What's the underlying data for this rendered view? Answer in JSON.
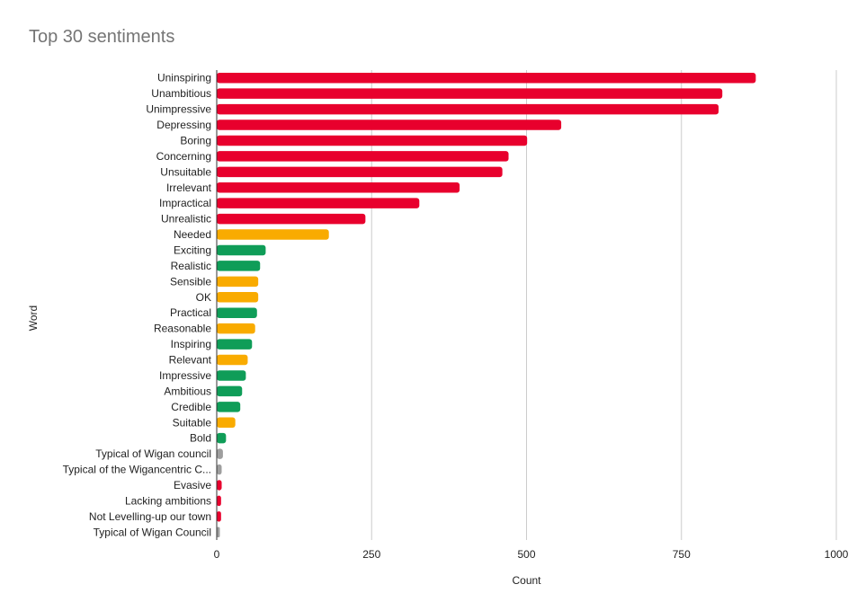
{
  "chart_data": {
    "type": "bar",
    "orientation": "horizontal",
    "title": "Top 30 sentiments",
    "xlabel": "Count",
    "ylabel": "Word",
    "xlim": [
      0,
      1000
    ],
    "xticks": [
      0,
      250,
      500,
      750,
      1000
    ],
    "grid": true,
    "legend": "none",
    "colors": {
      "negative": "#e8002d",
      "neutral": "#f9ab00",
      "positive": "#0f9d58",
      "other": "#9e9e9e"
    },
    "categories": [
      "Uninspiring",
      "Unambitious",
      "Unimpressive",
      "Depressing",
      "Boring",
      "Concerning",
      "Unsuitable",
      "Irrelevant",
      "Impractical",
      "Unrealistic",
      "Needed",
      "Exciting",
      "Realistic",
      "Sensible",
      "OK",
      "Practical",
      "Reasonable",
      "Inspiring",
      "Relevant",
      "Impressive",
      "Ambitious",
      "Credible",
      "Suitable",
      "Bold",
      "Typical of Wigan council",
      "Typical of the Wigancentric C...",
      "Evasive",
      "Lacking ambitions",
      "Not Levelling-up our town",
      "Typical of Wigan Council"
    ],
    "values": [
      870,
      816,
      810,
      556,
      501,
      471,
      461,
      392,
      327,
      240,
      181,
      79,
      70,
      67,
      67,
      65,
      62,
      57,
      50,
      47,
      41,
      38,
      30,
      15,
      10,
      8,
      8,
      7,
      7,
      5
    ],
    "groups": [
      "negative",
      "negative",
      "negative",
      "negative",
      "negative",
      "negative",
      "negative",
      "negative",
      "negative",
      "negative",
      "neutral",
      "positive",
      "positive",
      "neutral",
      "neutral",
      "positive",
      "neutral",
      "positive",
      "neutral",
      "positive",
      "positive",
      "positive",
      "neutral",
      "positive",
      "other",
      "other",
      "negative",
      "negative",
      "negative",
      "other"
    ]
  }
}
